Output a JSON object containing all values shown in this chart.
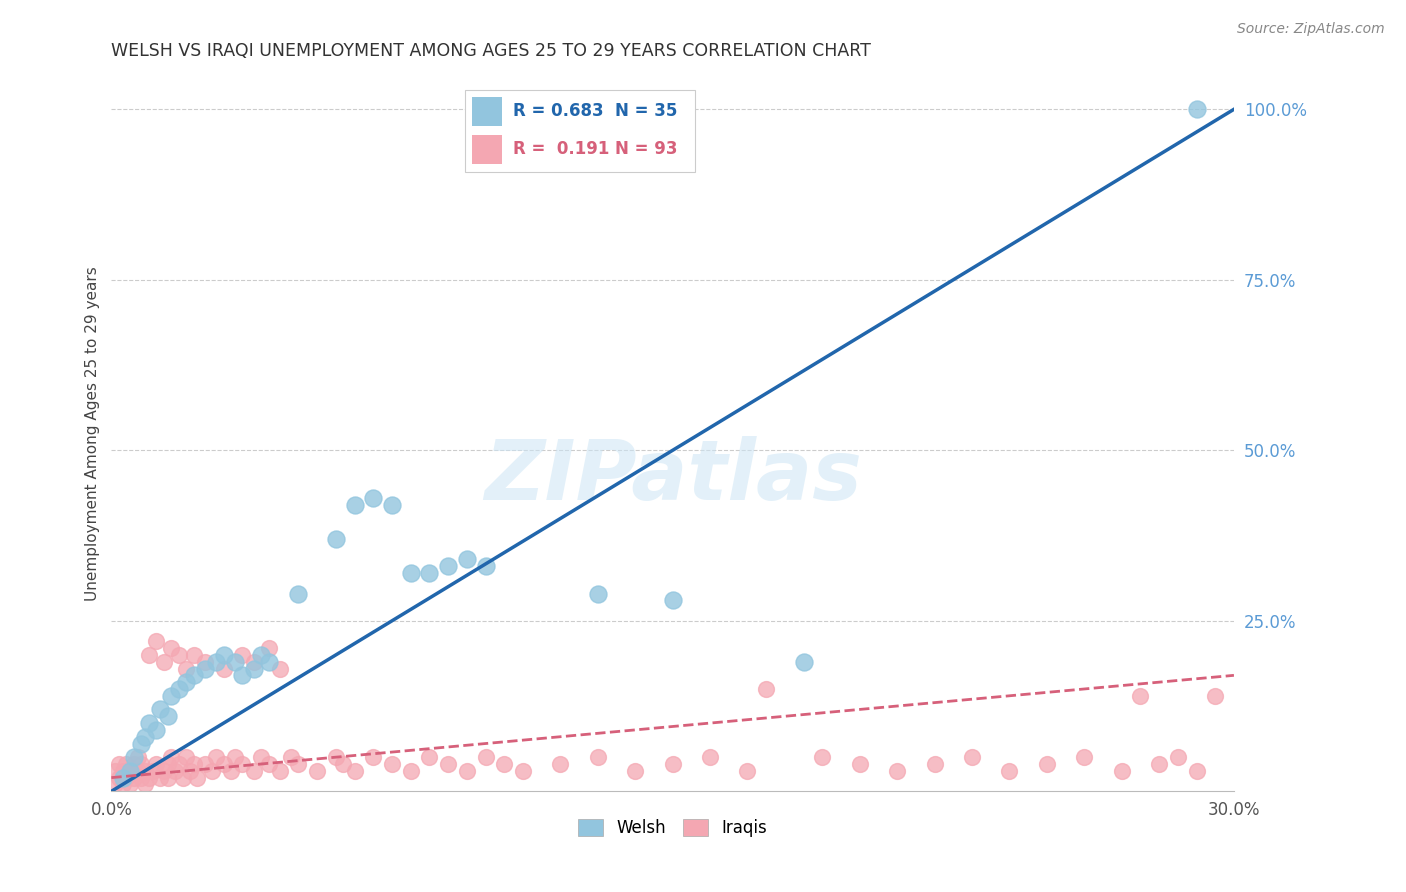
{
  "title": "WELSH VS IRAQI UNEMPLOYMENT AMONG AGES 25 TO 29 YEARS CORRELATION CHART",
  "source": "Source: ZipAtlas.com",
  "ylabel": "Unemployment Among Ages 25 to 29 years",
  "xlim": [
    0.0,
    0.3
  ],
  "ylim": [
    0.0,
    1.05
  ],
  "xticks": [
    0.0,
    0.1,
    0.2,
    0.3
  ],
  "xticklabels": [
    "0.0%",
    "",
    "",
    "30.0%"
  ],
  "yticks_right": [
    0.25,
    0.5,
    0.75,
    1.0
  ],
  "yticklabels_right": [
    "25.0%",
    "50.0%",
    "75.0%",
    "100.0%"
  ],
  "welsh_R": 0.683,
  "welsh_N": 35,
  "iraqi_R": 0.191,
  "iraqi_N": 93,
  "welsh_color": "#92c5de",
  "iraqi_color": "#f4a7b2",
  "welsh_line_color": "#2166ac",
  "iraqi_line_color": "#d6607a",
  "background_color": "#ffffff",
  "grid_color": "#cccccc",
  "watermark": "ZIPatlas",
  "welsh_line_x0": 0.0,
  "welsh_line_y0": 0.0,
  "welsh_line_x1": 0.3,
  "welsh_line_y1": 1.0,
  "iraqi_line_x0": 0.0,
  "iraqi_line_y0": 0.02,
  "iraqi_line_x1": 0.3,
  "iraqi_line_y1": 0.17,
  "welsh_x": [
    0.003,
    0.005,
    0.006,
    0.008,
    0.009,
    0.01,
    0.012,
    0.013,
    0.015,
    0.016,
    0.018,
    0.02,
    0.022,
    0.025,
    0.028,
    0.03,
    0.033,
    0.035,
    0.038,
    0.04,
    0.042,
    0.05,
    0.06,
    0.065,
    0.07,
    0.075,
    0.08,
    0.085,
    0.09,
    0.095,
    0.1,
    0.13,
    0.15,
    0.185,
    0.29
  ],
  "welsh_y": [
    0.02,
    0.03,
    0.05,
    0.07,
    0.08,
    0.1,
    0.09,
    0.12,
    0.11,
    0.14,
    0.15,
    0.16,
    0.17,
    0.18,
    0.19,
    0.2,
    0.19,
    0.17,
    0.18,
    0.2,
    0.19,
    0.29,
    0.37,
    0.42,
    0.43,
    0.42,
    0.32,
    0.32,
    0.33,
    0.34,
    0.33,
    0.29,
    0.28,
    0.19,
    1.0
  ],
  "iraqi_x": [
    0.001,
    0.001,
    0.002,
    0.002,
    0.003,
    0.003,
    0.004,
    0.004,
    0.005,
    0.005,
    0.006,
    0.006,
    0.007,
    0.007,
    0.008,
    0.008,
    0.009,
    0.009,
    0.01,
    0.011,
    0.012,
    0.013,
    0.014,
    0.015,
    0.015,
    0.016,
    0.017,
    0.018,
    0.019,
    0.02,
    0.021,
    0.022,
    0.023,
    0.025,
    0.027,
    0.028,
    0.03,
    0.032,
    0.033,
    0.035,
    0.038,
    0.04,
    0.042,
    0.045,
    0.048,
    0.05,
    0.055,
    0.06,
    0.062,
    0.065,
    0.07,
    0.075,
    0.08,
    0.085,
    0.09,
    0.095,
    0.1,
    0.105,
    0.11,
    0.12,
    0.13,
    0.14,
    0.15,
    0.16,
    0.17,
    0.175,
    0.19,
    0.2,
    0.21,
    0.22,
    0.23,
    0.24,
    0.25,
    0.26,
    0.27,
    0.275,
    0.28,
    0.285,
    0.29,
    0.295,
    0.01,
    0.012,
    0.014,
    0.016,
    0.018,
    0.02,
    0.022,
    0.025,
    0.03,
    0.035,
    0.038,
    0.042,
    0.045
  ],
  "iraqi_y": [
    0.01,
    0.03,
    0.02,
    0.04,
    0.01,
    0.03,
    0.02,
    0.04,
    0.01,
    0.03,
    0.02,
    0.04,
    0.03,
    0.05,
    0.02,
    0.04,
    0.01,
    0.03,
    0.02,
    0.03,
    0.04,
    0.02,
    0.03,
    0.04,
    0.02,
    0.05,
    0.03,
    0.04,
    0.02,
    0.05,
    0.03,
    0.04,
    0.02,
    0.04,
    0.03,
    0.05,
    0.04,
    0.03,
    0.05,
    0.04,
    0.03,
    0.05,
    0.04,
    0.03,
    0.05,
    0.04,
    0.03,
    0.05,
    0.04,
    0.03,
    0.05,
    0.04,
    0.03,
    0.05,
    0.04,
    0.03,
    0.05,
    0.04,
    0.03,
    0.04,
    0.05,
    0.03,
    0.04,
    0.05,
    0.03,
    0.15,
    0.05,
    0.04,
    0.03,
    0.04,
    0.05,
    0.03,
    0.04,
    0.05,
    0.03,
    0.14,
    0.04,
    0.05,
    0.03,
    0.14,
    0.2,
    0.22,
    0.19,
    0.21,
    0.2,
    0.18,
    0.2,
    0.19,
    0.18,
    0.2,
    0.19,
    0.21,
    0.18
  ]
}
